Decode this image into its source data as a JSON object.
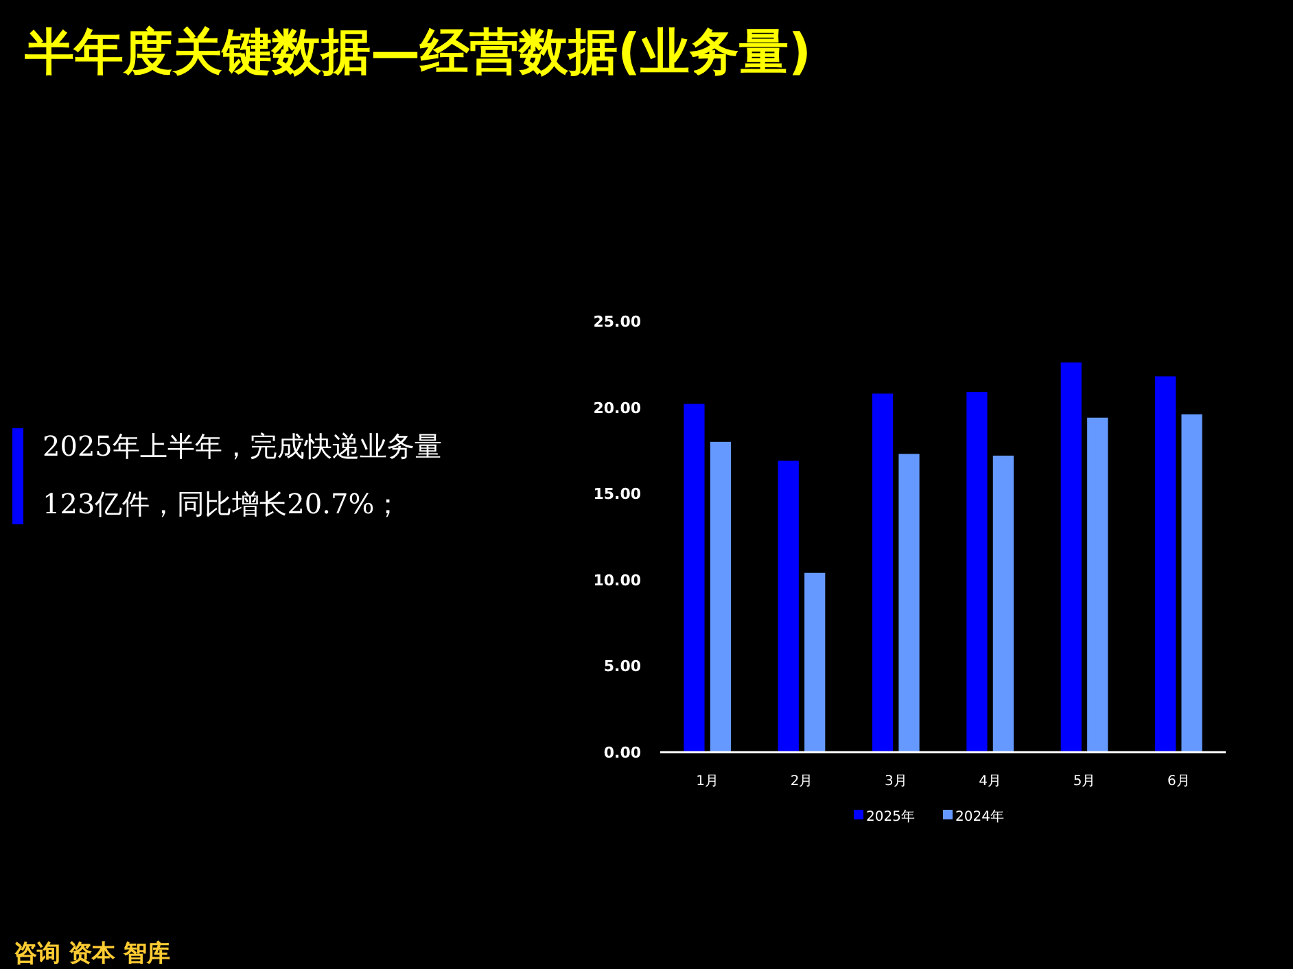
{
  "chart_data": {
    "type": "bar",
    "title": "半年度关键数据—经营数据(业务量)",
    "annotations": [
      "2025年上半年，完成快递业务量",
      "123亿件，同比增长20.7%；",
      "咨询 资本 智库"
    ],
    "categories": [
      "1月",
      "2月",
      "3月",
      "4月",
      "5月",
      "6月"
    ],
    "series": [
      {
        "name": "2025年",
        "color": "#0000ff",
        "values": [
          20.2,
          16.9,
          20.8,
          20.9,
          22.6,
          21.8
        ]
      },
      {
        "name": "2024年",
        "color": "#6699ff",
        "values": [
          18.0,
          10.4,
          17.3,
          17.2,
          19.4,
          19.6
        ]
      }
    ],
    "ylim": [
      0,
      25
    ],
    "yticks": [
      {
        "value": 0,
        "label": "0.00"
      },
      {
        "value": 5,
        "label": "5.00"
      },
      {
        "value": 10,
        "label": "10.00"
      },
      {
        "value": 15,
        "label": "15.00"
      },
      {
        "value": 20,
        "label": "20.00"
      },
      {
        "value": 25,
        "label": "25.00"
      }
    ],
    "grid": false,
    "legend": "bottom"
  }
}
